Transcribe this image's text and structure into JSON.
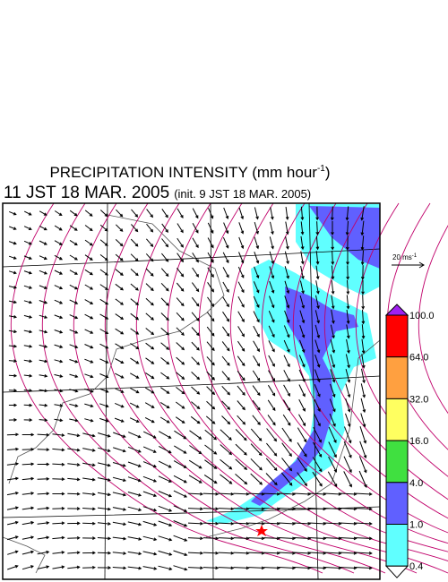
{
  "header": {
    "title": "PRECIPITATION INTENSITY (mm hour",
    "title_sup": "-1",
    "title_end": ")",
    "valid_time": "11 JST 18 MAR. 2005",
    "init_time": "(init. 9 JST 18 MAR. 2005)"
  },
  "wind_scale": {
    "label": "20 ms",
    "label_sup": "-1"
  },
  "colorbar": {
    "levels": [
      "100.0",
      "64.0",
      "32.0",
      "16.0",
      "4.0",
      "1.0",
      "0.4"
    ],
    "colors": [
      "#a020f0",
      "#ff0000",
      "#ffa040",
      "#ffff60",
      "#40e040",
      "#6060ff",
      "#60ffff",
      "#ffffff"
    ]
  }
}
